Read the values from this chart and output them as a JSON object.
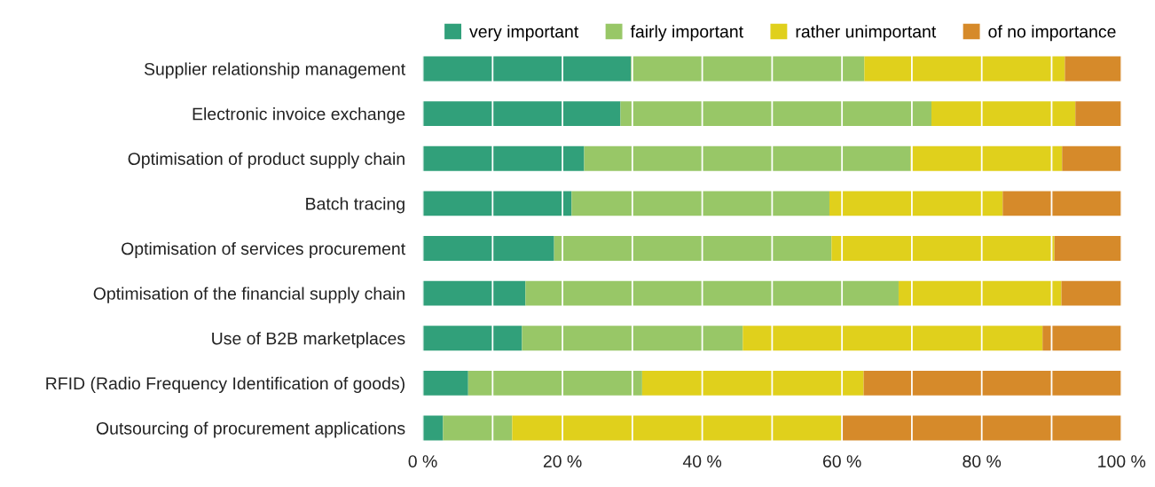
{
  "chart_data": {
    "type": "bar",
    "orientation": "horizontal",
    "stacked": true,
    "categories": [
      "Supplier relationship management",
      "Electronic invoice exchange",
      "Optimisation of product supply chain",
      "Batch tracing",
      "Optimisation of services procurement",
      "Optimisation of the financial supply chain",
      "Use of B2B marketplaces",
      "RFID (Radio Frequency Identification of goods)",
      "Outsourcing of procurement applications"
    ],
    "series": [
      {
        "name": "very important",
        "color": "#31a07a",
        "values": [
          29.8,
          28.3,
          23.1,
          21.3,
          18.8,
          14.7,
          14.2,
          6.5,
          2.9
        ]
      },
      {
        "name": "fairly important",
        "color": "#98c767",
        "values": [
          33.4,
          44.5,
          46.7,
          36.9,
          39.7,
          53.4,
          31.6,
          24.9,
          9.9
        ]
      },
      {
        "name": "rather unimportant",
        "color": "#e0d01c",
        "values": [
          28.7,
          20.6,
          21.7,
          24.8,
          31.9,
          23.3,
          42.9,
          31.7,
          47.1
        ]
      },
      {
        "name": "of no importance",
        "color": "#d68a2a",
        "values": [
          8.1,
          6.6,
          8.5,
          17.0,
          9.6,
          8.6,
          11.3,
          36.9,
          40.1
        ]
      }
    ],
    "xlim": [
      0,
      100
    ],
    "xticks": [
      {
        "value": 0,
        "label": "0 %"
      },
      {
        "value": 20,
        "label": "20 %"
      },
      {
        "value": 40,
        "label": "40 %"
      },
      {
        "value": 60,
        "label": "60 %"
      },
      {
        "value": 80,
        "label": "80 %"
      },
      {
        "value": 100,
        "label": "100 %"
      }
    ],
    "grid": "x",
    "legend": "top right"
  }
}
